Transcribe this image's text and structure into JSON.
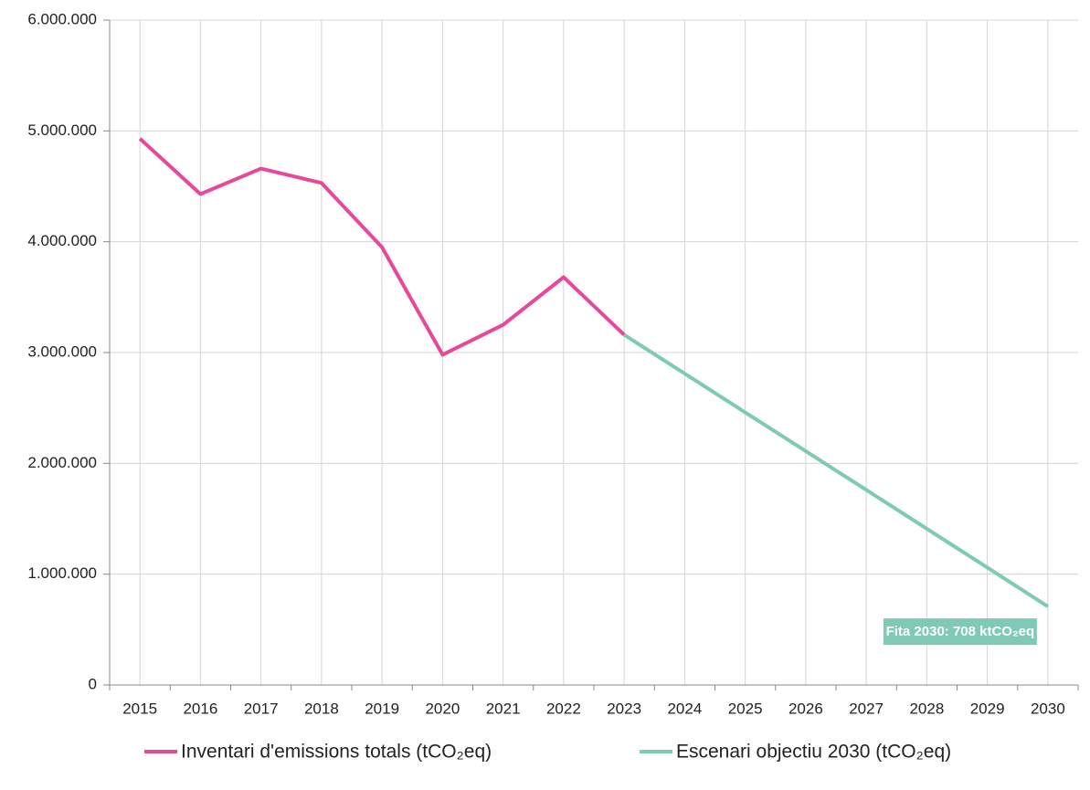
{
  "chart_data": {
    "type": "line",
    "categories": [
      "2015",
      "2016",
      "2017",
      "2018",
      "2019",
      "2020",
      "2021",
      "2022",
      "2023",
      "2024",
      "2025",
      "2026",
      "2027",
      "2028",
      "2029",
      "2030"
    ],
    "series": [
      {
        "name": "Inventari d'emissions totals (tCO₂eq)",
        "color": "#e8489a",
        "values": [
          4930000,
          4430000,
          4660000,
          4530000,
          3950000,
          2980000,
          3250000,
          3680000,
          3160000,
          null,
          null,
          null,
          null,
          null,
          null,
          null
        ]
      },
      {
        "name": "Escenari objectiu 2030 (tCO₂eq)",
        "color": "#7ecab5",
        "values": [
          null,
          null,
          null,
          null,
          null,
          null,
          null,
          null,
          3160000,
          2810000,
          2460000,
          2110000,
          1760000,
          1410000,
          1060000,
          708000
        ]
      }
    ],
    "annotation": "Fita 2030: 708 ktCO₂eq",
    "ylim": [
      0,
      6000000
    ],
    "yticks": [
      0,
      {
        "value": 1000000,
        "label": "1.000.000"
      },
      {
        "value": 2000000,
        "label": "2.000.000"
      },
      {
        "value": 3000000,
        "label": "3.000.000"
      },
      {
        "value": 4000000,
        "label": "4.000.000"
      },
      {
        "value": 5000000,
        "label": "5.000.000"
      },
      {
        "value": 6000000,
        "label": "6.000.000"
      }
    ],
    "grid": true
  }
}
